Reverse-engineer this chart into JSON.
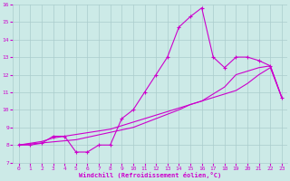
{
  "xlabel": "Windchill (Refroidissement éolien,°C)",
  "bg_color": "#cceae7",
  "line_color": "#cc00cc",
  "grid_color": "#aacccc",
  "xlim": [
    -0.5,
    23.5
  ],
  "ylim": [
    7,
    16
  ],
  "x_ticks": [
    0,
    1,
    2,
    3,
    4,
    5,
    6,
    7,
    8,
    9,
    10,
    11,
    12,
    13,
    14,
    15,
    16,
    17,
    18,
    19,
    20,
    21,
    22,
    23
  ],
  "y_ticks": [
    7,
    8,
    9,
    10,
    11,
    12,
    13,
    14,
    15,
    16
  ],
  "line1_x": [
    0,
    1,
    2,
    3,
    4,
    5,
    6,
    7,
    8,
    9,
    10,
    11,
    12,
    13,
    14,
    15,
    16,
    17,
    18,
    19,
    20,
    21,
    22,
    23
  ],
  "line1_y": [
    8.0,
    8.0,
    8.1,
    8.5,
    8.5,
    7.6,
    7.6,
    8.0,
    8.0,
    9.5,
    10.0,
    11.0,
    12.0,
    13.0,
    14.7,
    15.3,
    15.8,
    13.0,
    12.4,
    13.0,
    13.0,
    12.8,
    12.5,
    10.7
  ],
  "line2_x": [
    0,
    1,
    2,
    3,
    4,
    5,
    6,
    7,
    8,
    9,
    10,
    11,
    12,
    13,
    14,
    15,
    16,
    17,
    18,
    19,
    20,
    21,
    22,
    23
  ],
  "line2_y": [
    8.0,
    8.1,
    8.2,
    8.4,
    8.5,
    8.6,
    8.7,
    8.8,
    8.9,
    9.1,
    9.3,
    9.5,
    9.7,
    9.9,
    10.1,
    10.3,
    10.5,
    10.7,
    10.9,
    11.1,
    11.5,
    12.0,
    12.4,
    10.7
  ],
  "line3_x": [
    0,
    5,
    10,
    12,
    14,
    15,
    16,
    18,
    19,
    20,
    21,
    22,
    23
  ],
  "line3_y": [
    8.0,
    8.3,
    9.0,
    9.5,
    10.0,
    10.3,
    10.5,
    11.3,
    12.0,
    12.2,
    12.4,
    12.5,
    10.7
  ]
}
